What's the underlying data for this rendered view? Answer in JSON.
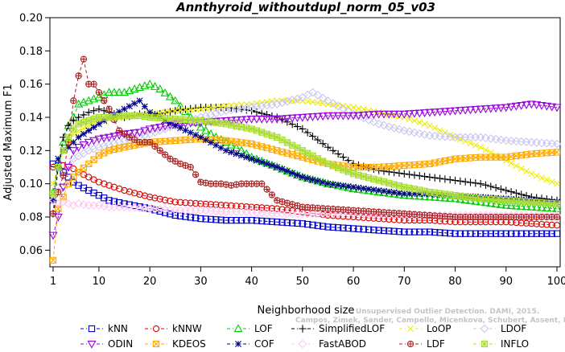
{
  "chart_data": {
    "type": "line",
    "title": "Annthyroid_withoutdupl_norm_05_v03",
    "xlabel": "Neighborhood size",
    "ylabel": "Adjusted Maximum F1",
    "xlim": [
      1,
      100
    ],
    "ylim": [
      0.05,
      0.2
    ],
    "xticks": [
      1,
      10,
      20,
      30,
      40,
      50,
      60,
      70,
      80,
      90,
      100
    ],
    "yticks": [
      0.06,
      0.08,
      0.1,
      0.12,
      0.14,
      0.16,
      0.18,
      0.2
    ],
    "ytick_labels": [
      "0.06",
      "0.08",
      "0.10",
      "0.12",
      "0.14",
      "0.16",
      "0.18",
      "0.20"
    ],
    "grid": false,
    "legend_position": "bottom",
    "citation": [
      "Campos, Zimek, Sander, Campello, Micenkova, Schubert, Assent, Houle",
      "Unsupervised Outlier Detection. DAMI, 2015."
    ],
    "series": [
      {
        "name": "kNN",
        "color": "#0000cc",
        "marker": "square",
        "x": [
          1,
          2,
          3,
          4,
          5,
          6,
          8,
          10,
          12,
          15,
          20,
          25,
          30,
          35,
          40,
          45,
          50,
          55,
          60,
          65,
          70,
          75,
          80,
          85,
          90,
          95,
          100
        ],
        "values": [
          0.112,
          0.111,
          0.107,
          0.104,
          0.101,
          0.099,
          0.096,
          0.093,
          0.09,
          0.088,
          0.085,
          0.081,
          0.079,
          0.078,
          0.078,
          0.077,
          0.076,
          0.074,
          0.073,
          0.072,
          0.071,
          0.071,
          0.07,
          0.07,
          0.07,
          0.07,
          0.07
        ]
      },
      {
        "name": "kNNW",
        "color": "#dd0000",
        "marker": "circle",
        "x": [
          1,
          2,
          3,
          4,
          5,
          6,
          8,
          10,
          12,
          15,
          20,
          25,
          30,
          35,
          40,
          45,
          50,
          55,
          60,
          65,
          70,
          75,
          80,
          85,
          90,
          95,
          100
        ],
        "values": [
          0.11,
          0.11,
          0.111,
          0.11,
          0.109,
          0.107,
          0.104,
          0.101,
          0.099,
          0.096,
          0.092,
          0.089,
          0.088,
          0.087,
          0.086,
          0.085,
          0.083,
          0.081,
          0.08,
          0.079,
          0.078,
          0.078,
          0.077,
          0.077,
          0.077,
          0.076,
          0.075
        ]
      },
      {
        "name": "LOF",
        "color": "#00cc00",
        "marker": "triangle-up",
        "x": [
          1,
          2,
          3,
          4,
          5,
          6,
          8,
          10,
          12,
          15,
          18,
          20,
          22,
          25,
          28,
          30,
          33,
          35,
          38,
          40,
          45,
          50,
          55,
          60,
          65,
          70,
          75,
          80,
          85,
          90,
          95,
          100
        ],
        "values": [
          0.095,
          0.11,
          0.125,
          0.135,
          0.14,
          0.148,
          0.15,
          0.152,
          0.155,
          0.155,
          0.158,
          0.16,
          0.157,
          0.15,
          0.14,
          0.134,
          0.128,
          0.125,
          0.12,
          0.116,
          0.11,
          0.104,
          0.1,
          0.097,
          0.095,
          0.093,
          0.092,
          0.091,
          0.089,
          0.087,
          0.086,
          0.085
        ]
      },
      {
        "name": "SimplifiedLOF",
        "color": "#000000",
        "marker": "plus",
        "x": [
          1,
          2,
          3,
          4,
          5,
          6,
          8,
          10,
          12,
          15,
          18,
          20,
          25,
          30,
          35,
          40,
          45,
          50,
          55,
          60,
          65,
          70,
          75,
          80,
          85,
          90,
          95,
          100
        ],
        "values": [
          0.082,
          0.11,
          0.128,
          0.135,
          0.138,
          0.14,
          0.143,
          0.145,
          0.143,
          0.14,
          0.142,
          0.141,
          0.144,
          0.146,
          0.146,
          0.144,
          0.14,
          0.133,
          0.122,
          0.112,
          0.108,
          0.106,
          0.104,
          0.102,
          0.1,
          0.096,
          0.092,
          0.09
        ]
      },
      {
        "name": "LoOP",
        "color": "#eeee00",
        "marker": "cross",
        "x": [
          1,
          3,
          5,
          8,
          10,
          15,
          20,
          25,
          30,
          35,
          40,
          45,
          50,
          55,
          60,
          65,
          70,
          75,
          80,
          85,
          90,
          95,
          100
        ],
        "values": [
          0.1,
          0.12,
          0.13,
          0.135,
          0.138,
          0.14,
          0.142,
          0.144,
          0.145,
          0.147,
          0.148,
          0.15,
          0.15,
          0.148,
          0.146,
          0.143,
          0.14,
          0.135,
          0.128,
          0.122,
          0.114,
          0.106,
          0.1
        ]
      },
      {
        "name": "LDOF",
        "color": "#c8c8f0",
        "marker": "diamond",
        "x": [
          1,
          3,
          5,
          8,
          10,
          15,
          20,
          25,
          30,
          35,
          40,
          45,
          50,
          52,
          55,
          60,
          65,
          70,
          75,
          80,
          85,
          90,
          95,
          100
        ],
        "values": [
          0.09,
          0.105,
          0.115,
          0.12,
          0.122,
          0.126,
          0.13,
          0.135,
          0.14,
          0.144,
          0.146,
          0.148,
          0.152,
          0.155,
          0.15,
          0.142,
          0.136,
          0.132,
          0.129,
          0.128,
          0.128,
          0.126,
          0.125,
          0.124
        ]
      },
      {
        "name": "ODIN",
        "color": "#9900dd",
        "marker": "triangle-down",
        "x": [
          1,
          2,
          3,
          4,
          5,
          6,
          8,
          10,
          12,
          15,
          18,
          20,
          25,
          30,
          35,
          40,
          45,
          50,
          55,
          60,
          65,
          70,
          75,
          80,
          85,
          90,
          95,
          100
        ],
        "values": [
          0.069,
          0.08,
          0.098,
          0.11,
          0.12,
          0.122,
          0.125,
          0.127,
          0.128,
          0.13,
          0.131,
          0.133,
          0.136,
          0.137,
          0.138,
          0.139,
          0.139,
          0.14,
          0.141,
          0.141,
          0.142,
          0.142,
          0.143,
          0.144,
          0.145,
          0.146,
          0.148,
          0.146
        ]
      },
      {
        "name": "KDEOS",
        "color": "#ffaa00",
        "marker": "square-x",
        "x": [
          1,
          2,
          3,
          4,
          5,
          6,
          8,
          10,
          12,
          15,
          20,
          25,
          30,
          35,
          40,
          45,
          50,
          55,
          60,
          65,
          70,
          75,
          80,
          85,
          90,
          95,
          100
        ],
        "values": [
          0.054,
          0.085,
          0.092,
          0.1,
          0.104,
          0.107,
          0.112,
          0.117,
          0.12,
          0.122,
          0.125,
          0.126,
          0.127,
          0.126,
          0.124,
          0.12,
          0.116,
          0.112,
          0.11,
          0.11,
          0.111,
          0.112,
          0.115,
          0.116,
          0.116,
          0.118,
          0.119
        ]
      },
      {
        "name": "COF",
        "color": "#000088",
        "marker": "asterisk",
        "x": [
          1,
          2,
          3,
          4,
          5,
          6,
          8,
          10,
          12,
          15,
          18,
          20,
          25,
          30,
          35,
          40,
          45,
          50,
          55,
          60,
          65,
          70,
          75,
          80,
          85,
          90,
          95,
          100
        ],
        "values": [
          0.09,
          0.115,
          0.12,
          0.122,
          0.125,
          0.128,
          0.132,
          0.136,
          0.14,
          0.145,
          0.15,
          0.143,
          0.135,
          0.128,
          0.12,
          0.115,
          0.11,
          0.104,
          0.1,
          0.098,
          0.096,
          0.094,
          0.094,
          0.093,
          0.092,
          0.091,
          0.09,
          0.089
        ]
      },
      {
        "name": "FastABOD",
        "color": "#ffc8f0",
        "marker": "diamond",
        "x": [
          1,
          2,
          3,
          4,
          5,
          6,
          8,
          10,
          12,
          15,
          20,
          25,
          30,
          35,
          40,
          45,
          50,
          55,
          60,
          65,
          70,
          75,
          80,
          85,
          90,
          95,
          100
        ],
        "values": [
          0.09,
          0.088,
          0.089,
          0.088,
          0.087,
          0.088,
          0.087,
          0.087,
          0.086,
          0.086,
          0.085,
          0.084,
          0.084,
          0.083,
          0.083,
          0.082,
          0.082,
          0.082,
          0.082,
          0.081,
          0.081,
          0.081,
          0.081,
          0.081,
          0.081,
          0.081,
          0.081
        ]
      },
      {
        "name": "LDF",
        "color": "#aa2222",
        "marker": "circle-plus",
        "x": [
          1,
          2,
          3,
          4,
          5,
          6,
          7,
          8,
          9,
          10,
          12,
          14,
          16,
          18,
          20,
          22,
          24,
          26,
          28,
          30,
          32,
          34,
          36,
          38,
          40,
          42,
          45,
          50,
          55,
          60,
          65,
          70,
          75,
          80,
          85,
          90,
          95,
          100
        ],
        "values": [
          0.082,
          0.095,
          0.105,
          0.125,
          0.15,
          0.165,
          0.175,
          0.16,
          0.16,
          0.155,
          0.145,
          0.132,
          0.128,
          0.125,
          0.125,
          0.12,
          0.115,
          0.112,
          0.11,
          0.101,
          0.1,
          0.1,
          0.099,
          0.1,
          0.1,
          0.1,
          0.09,
          0.086,
          0.085,
          0.084,
          0.083,
          0.082,
          0.081,
          0.08,
          0.08,
          0.08,
          0.08,
          0.08
        ]
      },
      {
        "name": "INFLO",
        "color": "#aadd33",
        "marker": "square-star",
        "x": [
          1,
          2,
          3,
          4,
          5,
          6,
          8,
          10,
          12,
          15,
          18,
          20,
          25,
          30,
          35,
          40,
          45,
          50,
          55,
          60,
          65,
          70,
          75,
          80,
          85,
          90,
          95,
          100
        ],
        "values": [
          0.094,
          0.11,
          0.12,
          0.128,
          0.133,
          0.136,
          0.138,
          0.14,
          0.14,
          0.141,
          0.141,
          0.14,
          0.139,
          0.138,
          0.136,
          0.133,
          0.128,
          0.12,
          0.112,
          0.106,
          0.102,
          0.098,
          0.095,
          0.093,
          0.091,
          0.09,
          0.089,
          0.088
        ]
      }
    ]
  }
}
